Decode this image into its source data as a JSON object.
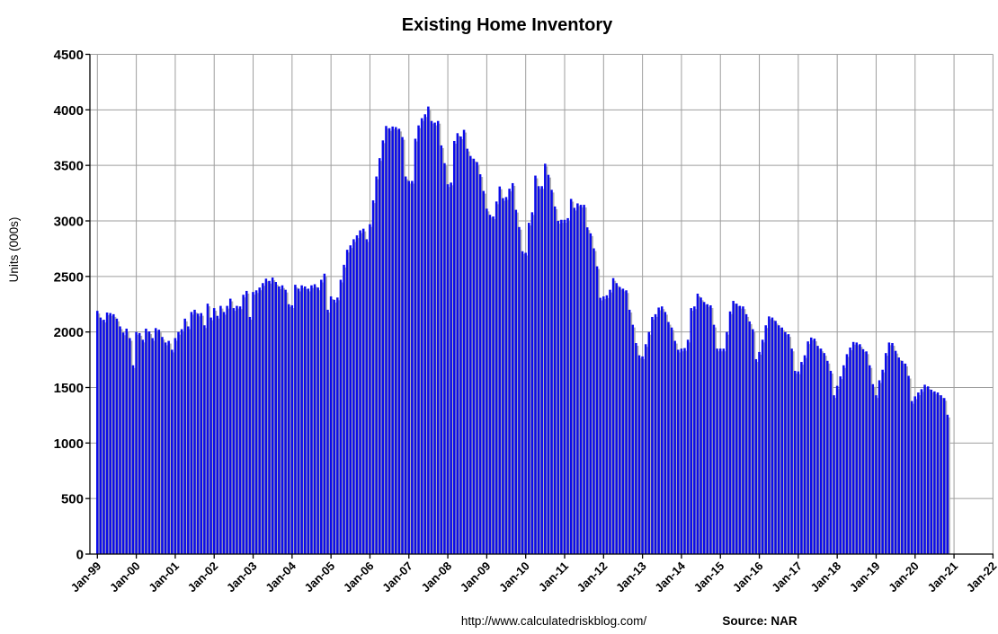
{
  "chart_data": {
    "type": "bar",
    "title": "Existing Home Inventory",
    "ylabel": "Units (000s)",
    "series_name": "Existing Home Inventory (thousands of units, monthly)",
    "start_month": "Jan-1999",
    "end_month": "Nov-2020",
    "frequency": "monthly",
    "ylim": [
      0,
      4500
    ],
    "ytick_step": 500,
    "yticks": [
      0,
      500,
      1000,
      1500,
      2000,
      2500,
      3000,
      3500,
      4000,
      4500
    ],
    "x_tick_labels": [
      "Jan-99",
      "Jan-00",
      "Jan-01",
      "Jan-02",
      "Jan-03",
      "Jan-04",
      "Jan-05",
      "Jan-06",
      "Jan-07",
      "Jan-08",
      "Jan-09",
      "Jan-10",
      "Jan-11",
      "Jan-12",
      "Jan-13",
      "Jan-14",
      "Jan-15",
      "Jan-16",
      "Jan-17",
      "Jan-18",
      "Jan-19",
      "Jan-20",
      "Jan-21",
      "Jan-22"
    ],
    "x_axis_total_months": 276,
    "grid": true,
    "legend": "none",
    "values": [
      2190,
      2130,
      2110,
      2175,
      2170,
      2160,
      2120,
      2050,
      1995,
      2030,
      1945,
      1700,
      2000,
      1990,
      1930,
      2030,
      2005,
      1945,
      2035,
      2020,
      1955,
      1905,
      1920,
      1840,
      1945,
      2000,
      2025,
      2120,
      2050,
      2180,
      2200,
      2165,
      2170,
      2060,
      2255,
      2130,
      2215,
      2145,
      2235,
      2180,
      2235,
      2300,
      2215,
      2235,
      2230,
      2335,
      2370,
      2135,
      2360,
      2375,
      2400,
      2440,
      2480,
      2460,
      2490,
      2450,
      2410,
      2420,
      2380,
      2250,
      2240,
      2425,
      2390,
      2420,
      2410,
      2390,
      2420,
      2430,
      2400,
      2470,
      2525,
      2200,
      2320,
      2290,
      2310,
      2470,
      2605,
      2740,
      2780,
      2835,
      2870,
      2915,
      2930,
      2835,
      2970,
      3185,
      3400,
      3565,
      3725,
      3855,
      3835,
      3850,
      3845,
      3830,
      3755,
      3400,
      3360,
      3360,
      3740,
      3860,
      3925,
      3960,
      4030,
      3900,
      3885,
      3900,
      3680,
      3520,
      3330,
      3345,
      3720,
      3790,
      3760,
      3820,
      3650,
      3585,
      3560,
      3530,
      3420,
      3270,
      3110,
      3055,
      3040,
      3175,
      3310,
      3205,
      3215,
      3290,
      3340,
      3100,
      2945,
      2727,
      2713,
      2983,
      3078,
      3408,
      3313,
      3313,
      3515,
      3415,
      3280,
      3130,
      3000,
      3010,
      3010,
      3025,
      3198,
      3118,
      3158,
      3145,
      3145,
      2942,
      2888,
      2753,
      2591,
      2308,
      2320,
      2330,
      2380,
      2485,
      2440,
      2405,
      2390,
      2375,
      2200,
      2065,
      1900,
      1790,
      1780,
      1890,
      2000,
      2135,
      2160,
      2220,
      2230,
      2180,
      2090,
      2040,
      1920,
      1840,
      1850,
      1855,
      1930,
      2215,
      2230,
      2345,
      2310,
      2270,
      2250,
      2240,
      2065,
      1850,
      1850,
      1850,
      2000,
      2185,
      2280,
      2255,
      2235,
      2230,
      2160,
      2095,
      2025,
      1755,
      1820,
      1930,
      2060,
      2140,
      2130,
      2100,
      2060,
      2040,
      2000,
      1980,
      1850,
      1650,
      1645,
      1730,
      1790,
      1915,
      1950,
      1940,
      1875,
      1850,
      1810,
      1740,
      1650,
      1430,
      1515,
      1600,
      1700,
      1800,
      1860,
      1910,
      1905,
      1890,
      1845,
      1825,
      1700,
      1530,
      1430,
      1565,
      1660,
      1810,
      1905,
      1900,
      1830,
      1770,
      1740,
      1715,
      1605,
      1378,
      1420,
      1455,
      1485,
      1525,
      1510,
      1480,
      1465,
      1455,
      1430,
      1405,
      1255
    ],
    "footer_url": "http://www.calculatedriskblog.com/",
    "footer_source": "Source: NAR",
    "colors": {
      "bar": "#0b0bea",
      "bar_shadow": "#b0b0b0",
      "grid": "#9e9e9e",
      "axis": "#000000",
      "background": "#ffffff"
    }
  }
}
